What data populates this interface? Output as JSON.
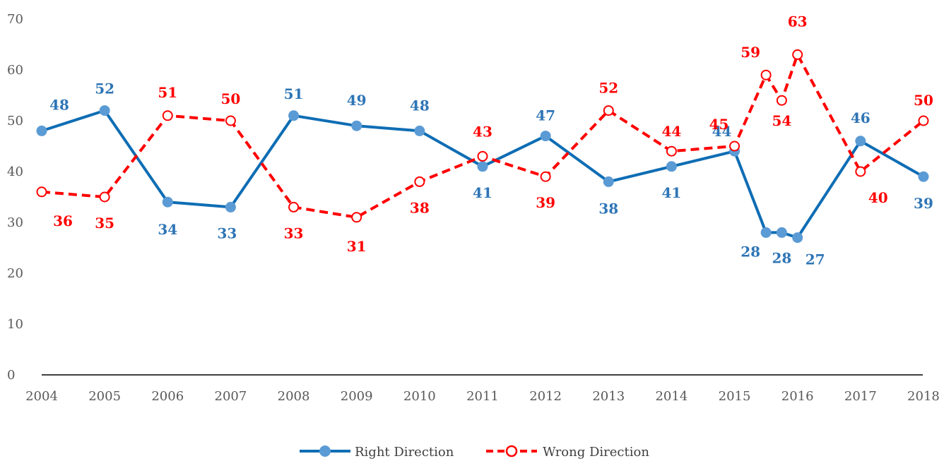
{
  "chart_data": {
    "type": "line",
    "x_ticks": [
      "2004",
      "2005",
      "2006",
      "2007",
      "2008",
      "2009",
      "2010",
      "2011",
      "2012",
      "2013",
      "2014",
      "2015",
      "2016",
      "2017",
      "2018"
    ],
    "ylim": [
      0,
      70
    ],
    "y_ticks": [
      "0",
      "10",
      "20",
      "30",
      "40",
      "50",
      "60",
      "70"
    ],
    "grid": false,
    "legend_position": "bottom",
    "colors": {
      "right_line": "#0e6db4",
      "right_marker": "#5b9bd5",
      "right_label": "#2e75b6",
      "wrong": "#ff0000"
    },
    "series": [
      {
        "name": "Right Direction",
        "x": [
          2004,
          2005,
          2006,
          2007,
          2008,
          2009,
          2010,
          2011,
          2012,
          2013,
          2014,
          2015,
          2015.5,
          2015.75,
          2016,
          2017,
          2018
        ],
        "values": [
          48,
          52,
          34,
          33,
          51,
          49,
          48,
          41,
          47,
          38,
          41,
          44,
          28,
          28,
          27,
          46,
          39
        ],
        "labels": [
          "48",
          "52",
          "34",
          "33",
          "51",
          "49",
          "48",
          "41",
          "47",
          "38",
          "41",
          "44",
          "28",
          "28",
          "27",
          "46",
          "39"
        ]
      },
      {
        "name": "Wrong Direction",
        "x": [
          2004,
          2005,
          2006,
          2007,
          2008,
          2009,
          2010,
          2011,
          2012,
          2013,
          2014,
          2015,
          2015.5,
          2015.75,
          2016,
          2017,
          2018
        ],
        "values": [
          36,
          35,
          51,
          50,
          33,
          31,
          38,
          43,
          39,
          52,
          44,
          45,
          59,
          54,
          63,
          40,
          50
        ],
        "labels": [
          "36",
          "35",
          "51",
          "50",
          "33",
          "31",
          "38",
          "43",
          "39",
          "52",
          "44",
          "45",
          "59",
          "54",
          "63",
          "40",
          "50"
        ]
      }
    ]
  },
  "legend": {
    "right_label": "Right Direction",
    "wrong_label": "Wrong Direction"
  }
}
